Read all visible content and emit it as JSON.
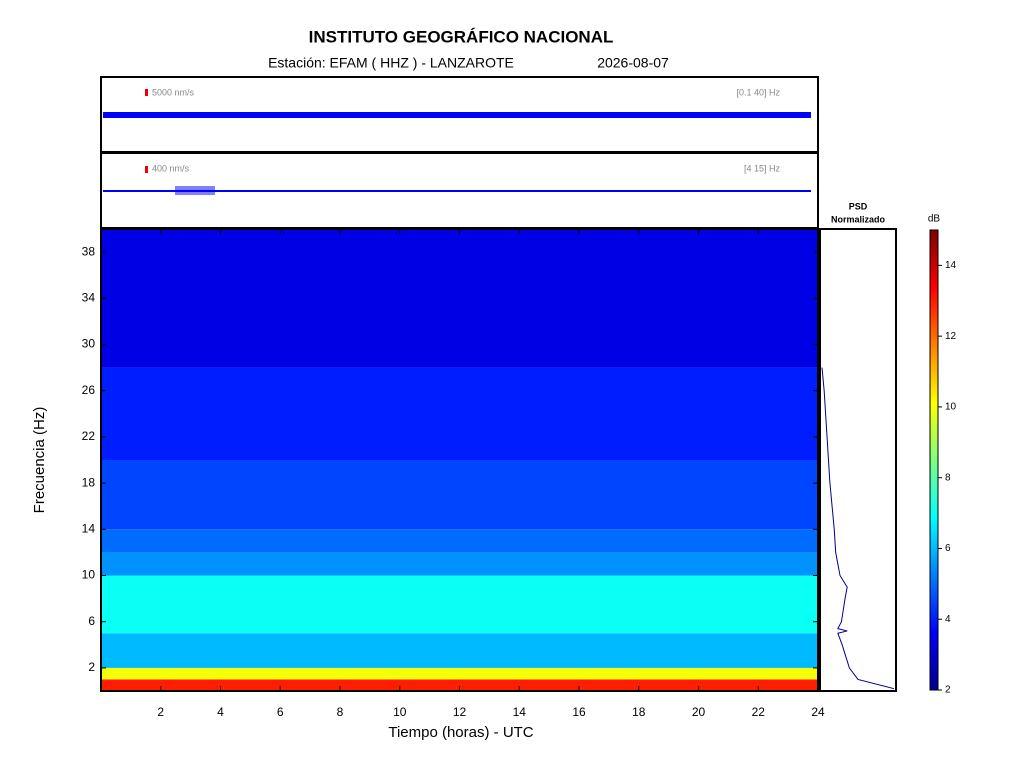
{
  "chart_data": {
    "type": "spectrogram",
    "title": "INSTITUTO GEOGRÁFICO NACIONAL",
    "station": "Estación:  EFAM ( HHZ ) - LANZAROTE",
    "date": "2026-08-07",
    "traces": [
      {
        "scale_label": "5000 nm/s",
        "band_label": "[0.1 40] Hz",
        "color": "#0000ff"
      },
      {
        "scale_label": "400 nm/s",
        "band_label": "[4 15] Hz",
        "color": "#0000ff"
      }
    ],
    "x_label": "Tiempo (horas) - UTC",
    "y_label": "Frecuencia  (Hz)",
    "xlim": [
      0,
      24
    ],
    "xticks": [
      2,
      4,
      6,
      8,
      10,
      12,
      14,
      16,
      18,
      20,
      22,
      24
    ],
    "ylim": [
      0,
      40
    ],
    "yticks": [
      2,
      6,
      10,
      14,
      18,
      22,
      26,
      30,
      34,
      38
    ],
    "bands": {
      "freq_edges": [
        0,
        1,
        2,
        5,
        10,
        12,
        14,
        20,
        28,
        40
      ],
      "db": [
        13,
        10,
        6,
        7,
        5.5,
        5,
        4.5,
        4,
        3.3
      ]
    },
    "psd": {
      "title": [
        "PSD",
        "Normalizado"
      ],
      "freq": [
        0.2,
        1,
        2,
        4,
        5,
        5.2,
        5.4,
        6,
        8,
        9,
        10,
        12,
        14,
        18,
        22,
        26,
        28
      ],
      "values": [
        1.0,
        0.5,
        0.38,
        0.28,
        0.22,
        0.35,
        0.22,
        0.27,
        0.32,
        0.35,
        0.25,
        0.19,
        0.17,
        0.11,
        0.07,
        0.03,
        0
      ],
      "xlim": [
        0,
        1
      ],
      "color": "#00008b"
    },
    "colorbar": {
      "label": "dB",
      "clim": [
        2,
        15
      ],
      "ticks": [
        2,
        4,
        6,
        8,
        10,
        12,
        14
      ]
    }
  }
}
